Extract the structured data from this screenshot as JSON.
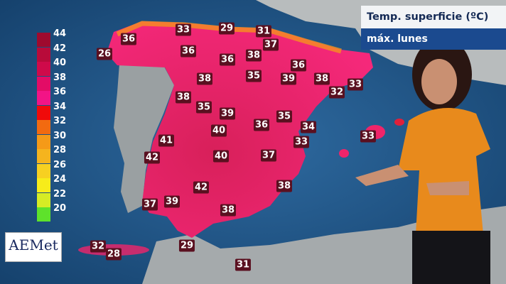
{
  "overlay": {
    "title": "Temp. superficie (ºC)",
    "subtitle": "máx. lunes"
  },
  "logo": {
    "text": "AEMet"
  },
  "legend": {
    "labels": [
      "44",
      "42",
      "40",
      "38",
      "36",
      "34",
      "32",
      "30",
      "28",
      "26",
      "24",
      "22",
      "20"
    ],
    "colors": [
      "#9e0a2e",
      "#b80b3a",
      "#cf0a4a",
      "#e30c66",
      "#f21486",
      "#f00a0a",
      "#f26a10",
      "#f59a18",
      "#f5b41e",
      "#f7d021",
      "#f7ec1a",
      "#d6ec25",
      "#5ee22b"
    ]
  },
  "map": {
    "heat_color": "#f0246a",
    "land_color": "#9aa0a2",
    "sea_color": "#1d4f7e",
    "temperatures": [
      "36",
      "33",
      "29",
      "31",
      "26",
      "36",
      "37",
      "36",
      "38",
      "36",
      "38",
      "35",
      "39",
      "38",
      "33",
      "32",
      "38",
      "35",
      "39",
      "35",
      "36",
      "34",
      "40",
      "41",
      "33",
      "33",
      "42",
      "40",
      "37",
      "42",
      "38",
      "37",
      "39",
      "38",
      "29",
      "32",
      "28",
      "31"
    ]
  }
}
